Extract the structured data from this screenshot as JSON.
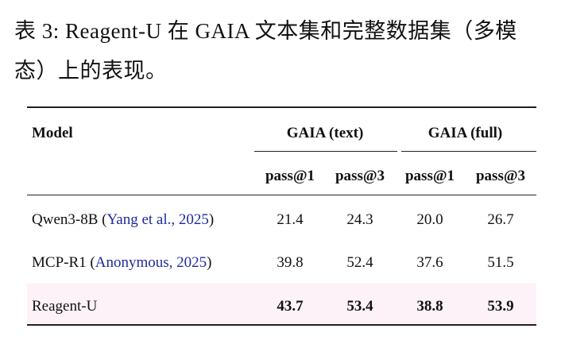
{
  "caption": {
    "label": "表 3:",
    "text": "Reagent-U 在 GAIA 文本集和完整数据集（多模态）上的表现。"
  },
  "table": {
    "header": {
      "model": "Model",
      "groups": [
        "GAIA (text)",
        "GAIA (full)"
      ],
      "metrics": [
        "pass@1",
        "pass@3",
        "pass@1",
        "pass@3"
      ]
    },
    "rows": [
      {
        "model": [
          "Qwen3-8B (",
          "Yang et al., 2025",
          ")"
        ],
        "values": [
          "21.4",
          "24.3",
          "20.0",
          "26.7"
        ],
        "highlight": false
      },
      {
        "model": [
          "MCP-R1 (",
          "Anonymous, 2025",
          ")"
        ],
        "values": [
          "39.8",
          "52.4",
          "37.6",
          "51.5"
        ],
        "highlight": false
      },
      {
        "model": [
          "Reagent-U"
        ],
        "values": [
          "43.7",
          "53.4",
          "38.8",
          "53.9"
        ],
        "highlight": true
      }
    ]
  }
}
